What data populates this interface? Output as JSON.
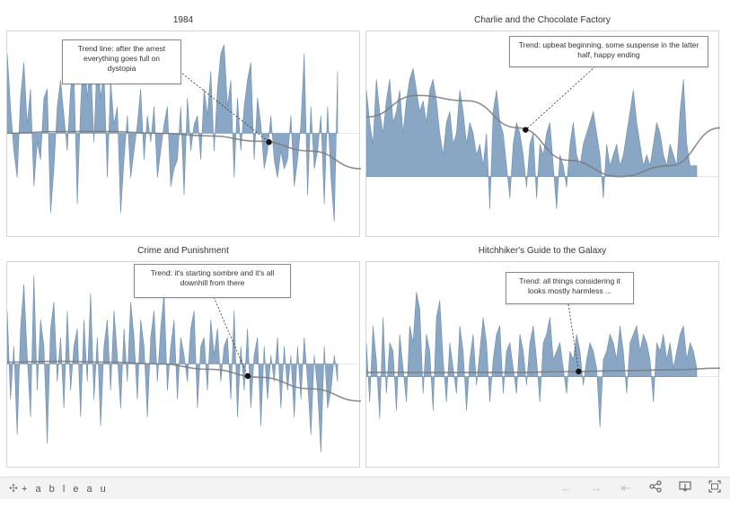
{
  "chart_data": [
    {
      "type": "area",
      "title": "1984",
      "annotation": "Trend line: after the arrest everything goes full on dystopia",
      "values": [
        0.9,
        0.3,
        -0.2,
        -0.5,
        0.4,
        0.8,
        0.1,
        0.5,
        -0.6,
        -0.1,
        -0.3,
        0.4,
        0.5,
        -0.9,
        -0.4,
        0.3,
        0.6,
        0.2,
        -0.2,
        0.5,
        0.7,
        -0.8,
        0.3,
        1.0,
        0.4,
        0.8,
        -0.1,
        0.9,
        0.4,
        0.7,
        -0.5,
        0.6,
        0.1,
        0.3,
        -0.9,
        -0.3,
        0.2,
        -0.5,
        -0.2,
        0.1,
        0.5,
        -0.3,
        0.2,
        -0.1,
        0.3,
        -0.5,
        -0.2,
        0.1,
        0.3,
        -0.6,
        -0.4,
        -0.3,
        0.3,
        -0.7,
        0.4,
        -0.2,
        0.1,
        0.2,
        -0.3,
        0.5,
        0.2,
        0.7,
        -0.2,
        0.5,
        0.9,
        1.0,
        0.3,
        0.6,
        -0.5,
        0.4,
        -0.2,
        0.3,
        0.6,
        0.8,
        -0.3,
        0.4,
        0.1,
        -0.4,
        -0.2,
        0.2,
        -0.3,
        -0.5,
        -0.2,
        -0.4,
        -0.3,
        0.2,
        -0.6,
        -0.3,
        0.1,
        0.9,
        -0.7,
        0.3,
        -0.4,
        -0.2,
        0.2,
        -0.8,
        0.3,
        -0.5,
        -1.0,
        0.7
      ],
      "trend": [
        0.0,
        0.02,
        0.02,
        0.0,
        -0.03,
        -0.09,
        -0.2,
        -0.4
      ],
      "ylim": [
        -1.1,
        1.1
      ]
    },
    {
      "type": "area",
      "title": "Charlie and the Chocolate Factory",
      "annotation": "Trend: upbeat beginning, some suspense in the latter half, happy ending",
      "values": [
        0.8,
        0.5,
        0.3,
        0.9,
        0.6,
        0.4,
        0.7,
        0.9,
        0.5,
        0.6,
        0.8,
        0.4,
        0.7,
        0.9,
        1.0,
        0.8,
        0.6,
        0.7,
        0.5,
        0.8,
        0.9,
        0.7,
        0.4,
        0.2,
        0.5,
        0.6,
        0.3,
        0.4,
        0.8,
        0.6,
        0.3,
        0.5,
        0.4,
        0.2,
        0.3,
        0.1,
        0.4,
        -0.3,
        0.6,
        0.8,
        0.5,
        0.4,
        0.1,
        -0.2,
        0.3,
        0.5,
        0.4,
        0.2,
        -0.1,
        0.3,
        0.4,
        -0.2,
        0.3,
        0.2,
        0.4,
        0.5,
        0.1,
        -0.3,
        0.2,
        0.1,
        -0.1,
        0.3,
        0.5,
        0.2,
        0.1,
        0.3,
        0.4,
        0.5,
        0.6,
        0.4,
        0.2,
        -0.2,
        0.3,
        0.1,
        0.2,
        0.3,
        0.1,
        0.2,
        0.4,
        0.6,
        0.8,
        0.5,
        0.3,
        0.1,
        0.2,
        0.1,
        0.3,
        0.5,
        0.4,
        0.2,
        0.1,
        0.3,
        0.2,
        0.1,
        0.6,
        0.9,
        0.3,
        0.1,
        0.1,
        0.1
      ],
      "trend": [
        0.55,
        0.75,
        0.7,
        0.45,
        0.15,
        0.0,
        0.1,
        0.45
      ],
      "ylim": [
        -0.5,
        1.3
      ]
    },
    {
      "type": "area",
      "title": "Crime and Punishment",
      "annotation": "Trend: it's starting sombre and it's all downhill from there",
      "values": [
        0.6,
        -0.4,
        0.2,
        -0.8,
        0.4,
        0.9,
        0.1,
        -0.6,
        1.0,
        -0.3,
        0.5,
        0.2,
        -0.9,
        0.4,
        0.7,
        -0.2,
        0.3,
        -0.5,
        0.6,
        -0.3,
        0.2,
        0.4,
        -0.6,
        0.5,
        -0.2,
        0.8,
        -0.4,
        0.3,
        -0.7,
        0.2,
        0.5,
        -0.3,
        0.6,
        0.1,
        -0.5,
        0.4,
        -0.2,
        0.7,
        0.3,
        -0.4,
        0.5,
        0.2,
        -0.6,
        0.3,
        0.6,
        -0.2,
        0.4,
        0.8,
        -0.3,
        0.2,
        0.5,
        -0.4,
        0.3,
        0.1,
        -0.2,
        0.4,
        0.6,
        -0.5,
        0.2,
        0.3,
        -0.3,
        0.5,
        0.1,
        0.4,
        -0.2,
        0.2,
        0.3,
        -0.4,
        0.6,
        -0.6,
        0.2,
        -0.3,
        0.4,
        -0.5,
        0.1,
        0.3,
        -0.7,
        0.2,
        -0.4,
        0.1,
        -0.2,
        0.3,
        -0.5,
        0.2,
        -0.3,
        0.1,
        -0.6,
        0.2,
        -0.4,
        0.3,
        -0.2,
        -0.8,
        0.1,
        -0.3,
        -1.0,
        0.2,
        -0.5,
        -0.3,
        0.1,
        -0.2
      ],
      "trend": [
        0.02,
        0.03,
        0.02,
        0.0,
        -0.06,
        -0.15,
        -0.28,
        -0.42
      ],
      "ylim": [
        -1.1,
        1.1
      ]
    },
    {
      "type": "area",
      "title": "Hitchhiker's Guide to the Galaxy",
      "annotation": "Trend: all things considering it looks mostly harmless ...",
      "values": [
        0.4,
        -0.3,
        0.6,
        0.2,
        -0.5,
        0.7,
        -0.2,
        0.4,
        0.3,
        -0.4,
        0.5,
        0.1,
        -0.3,
        0.6,
        0.4,
        1.0,
        0.8,
        -0.2,
        0.5,
        0.3,
        -0.4,
        0.7,
        0.9,
        0.2,
        -0.3,
        0.4,
        0.1,
        -0.2,
        0.6,
        0.3,
        -0.4,
        0.2,
        0.5,
        -0.1,
        0.3,
        0.7,
        0.4,
        -0.3,
        0.2,
        0.5,
        0.6,
        -0.2,
        0.3,
        0.4,
        0.1,
        -0.2,
        0.5,
        0.3,
        -0.1,
        0.4,
        0.6,
        0.2,
        -0.3,
        0.4,
        0.5,
        0.7,
        0.2,
        0.3,
        0.4,
        0.1,
        -0.2,
        0.3,
        0.2,
        0.5,
        0.3,
        -0.1,
        0.2,
        0.4,
        0.3,
        0.1,
        -0.6,
        0.2,
        0.3,
        0.5,
        0.4,
        0.2,
        0.6,
        0.3,
        -0.2,
        0.4,
        0.5,
        0.6,
        0.3,
        0.5,
        0.4,
        0.2,
        -0.3,
        0.4,
        0.3,
        0.5,
        0.2,
        0.4,
        0.1,
        0.3,
        0.5,
        0.6,
        0.2,
        0.4,
        0.3,
        0.1
      ],
      "trend": [
        0.05,
        0.05,
        0.05,
        0.05,
        0.06,
        0.07,
        0.08,
        0.1
      ],
      "ylim": [
        -1.0,
        1.3
      ]
    }
  ],
  "footer": {
    "logo_text": "+ a b l e a u",
    "toolbar_icons": [
      "undo-icon",
      "redo-icon",
      "revert-icon",
      "share-icon",
      "download-icon",
      "fullscreen-icon"
    ]
  }
}
